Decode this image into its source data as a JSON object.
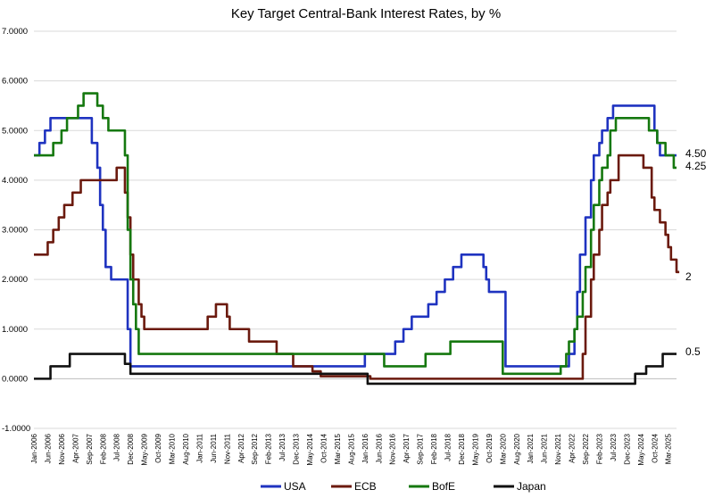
{
  "chart_data": {
    "type": "line",
    "title": "Key Target Central-Bank Interest Rates, by %",
    "xlabel": "",
    "ylabel": "",
    "ylim": [
      -1,
      7
    ],
    "x_start": "2006-01",
    "x_end": "2025-06",
    "y_ticks": [
      "-1.0000",
      "0.0000",
      "1.0000",
      "2.0000",
      "3.0000",
      "4.0000",
      "5.0000",
      "6.0000",
      "7.0000"
    ],
    "x_ticks": [
      "Jan-2006",
      "Jun-2006",
      "Nov-2006",
      "Apr-2007",
      "Sep-2007",
      "Feb-2008",
      "Jul-2008",
      "Dec-2008",
      "May-2009",
      "Oct-2009",
      "Mar-2010",
      "Aug-2010",
      "Jan-2011",
      "Jun-2011",
      "Nov-2011",
      "Apr-2012",
      "Sep-2012",
      "Feb-2013",
      "Jul-2013",
      "Dec-2013",
      "May-2014",
      "Oct-2014",
      "Mar-2015",
      "Aug-2015",
      "Jan-2016",
      "Jun-2016",
      "Nov-2016",
      "Apr-2017",
      "Sep-2017",
      "Feb-2018",
      "Jul-2018",
      "Dec-2018",
      "May-2019",
      "Oct-2019",
      "Mar-2020",
      "Aug-2020",
      "Jan-2021",
      "Jun-2021",
      "Nov-2021",
      "Apr-2022",
      "Sep-2022",
      "Feb-2023",
      "Jul-2023",
      "Dec-2023",
      "May-2024",
      "Oct-2024",
      "Mar-2025"
    ],
    "grid": "horizontal",
    "legend_position": "bottom",
    "series": [
      {
        "name": "USA",
        "color": "#1f33c0",
        "end_label": "4.50",
        "points": [
          [
            "2006-01",
            4.5
          ],
          [
            "2006-02",
            4.5
          ],
          [
            "2006-03",
            4.75
          ],
          [
            "2006-05",
            5.0
          ],
          [
            "2006-07",
            5.25
          ],
          [
            "2007-09",
            5.25
          ],
          [
            "2007-10",
            4.75
          ],
          [
            "2007-12",
            4.25
          ],
          [
            "2008-01",
            3.5
          ],
          [
            "2008-02",
            3.0
          ],
          [
            "2008-03",
            2.25
          ],
          [
            "2008-05",
            2.0
          ],
          [
            "2008-10",
            2.0
          ],
          [
            "2008-11",
            1.0
          ],
          [
            "2008-12",
            0.25
          ],
          [
            "2015-12",
            0.25
          ],
          [
            "2016-01",
            0.5
          ],
          [
            "2016-12",
            0.75
          ],
          [
            "2017-03",
            1.0
          ],
          [
            "2017-06",
            1.25
          ],
          [
            "2017-12",
            1.5
          ],
          [
            "2018-03",
            1.75
          ],
          [
            "2018-06",
            2.0
          ],
          [
            "2018-09",
            2.25
          ],
          [
            "2018-12",
            2.5
          ],
          [
            "2019-07",
            2.5
          ],
          [
            "2019-08",
            2.25
          ],
          [
            "2019-09",
            2.0
          ],
          [
            "2019-10",
            1.75
          ],
          [
            "2020-03",
            1.75
          ],
          [
            "2020-04",
            0.25
          ],
          [
            "2022-02",
            0.25
          ],
          [
            "2022-03",
            0.5
          ],
          [
            "2022-05",
            1.0
          ],
          [
            "2022-06",
            1.75
          ],
          [
            "2022-07",
            2.5
          ],
          [
            "2022-09",
            3.25
          ],
          [
            "2022-11",
            4.0
          ],
          [
            "2022-12",
            4.5
          ],
          [
            "2023-02",
            4.75
          ],
          [
            "2023-03",
            5.0
          ],
          [
            "2023-05",
            5.25
          ],
          [
            "2023-07",
            5.5
          ],
          [
            "2024-09",
            5.5
          ],
          [
            "2024-10",
            5.0
          ],
          [
            "2024-11",
            4.75
          ],
          [
            "2024-12",
            4.5
          ],
          [
            "2025-06",
            4.5
          ]
        ]
      },
      {
        "name": "ECB",
        "color": "#6b1a0e",
        "end_label": "2",
        "points": [
          [
            "2006-01",
            2.5
          ],
          [
            "2006-03",
            2.5
          ],
          [
            "2006-06",
            2.75
          ],
          [
            "2006-08",
            3.0
          ],
          [
            "2006-10",
            3.25
          ],
          [
            "2006-12",
            3.5
          ],
          [
            "2007-03",
            3.75
          ],
          [
            "2007-06",
            4.0
          ],
          [
            "2008-07",
            4.25
          ],
          [
            "2008-10",
            3.75
          ],
          [
            "2008-11",
            3.25
          ],
          [
            "2008-12",
            2.5
          ],
          [
            "2009-01",
            2.0
          ],
          [
            "2009-03",
            1.5
          ],
          [
            "2009-04",
            1.25
          ],
          [
            "2009-05",
            1.0
          ],
          [
            "2011-04",
            1.25
          ],
          [
            "2011-07",
            1.5
          ],
          [
            "2011-11",
            1.25
          ],
          [
            "2011-12",
            1.0
          ],
          [
            "2012-07",
            0.75
          ],
          [
            "2013-05",
            0.5
          ],
          [
            "2013-11",
            0.25
          ],
          [
            "2014-06",
            0.15
          ],
          [
            "2014-09",
            0.05
          ],
          [
            "2016-03",
            0.0
          ],
          [
            "2022-07",
            0.0
          ],
          [
            "2022-08",
            0.5
          ],
          [
            "2022-09",
            1.25
          ],
          [
            "2022-11",
            2.0
          ],
          [
            "2022-12",
            2.5
          ],
          [
            "2023-02",
            3.0
          ],
          [
            "2023-03",
            3.5
          ],
          [
            "2023-05",
            3.75
          ],
          [
            "2023-06",
            4.0
          ],
          [
            "2023-09",
            4.5
          ],
          [
            "2024-06",
            4.25
          ],
          [
            "2024-09",
            3.65
          ],
          [
            "2024-10",
            3.4
          ],
          [
            "2024-12",
            3.15
          ],
          [
            "2025-02",
            2.9
          ],
          [
            "2025-03",
            2.65
          ],
          [
            "2025-04",
            2.4
          ],
          [
            "2025-06",
            2.15
          ],
          [
            "2025-07",
            2.15
          ]
        ]
      },
      {
        "name": "BofE",
        "color": "#15780f",
        "end_label": "4.25",
        "points": [
          [
            "2006-01",
            4.5
          ],
          [
            "2006-08",
            4.75
          ],
          [
            "2006-11",
            5.0
          ],
          [
            "2007-01",
            5.25
          ],
          [
            "2007-05",
            5.5
          ],
          [
            "2007-07",
            5.75
          ],
          [
            "2007-12",
            5.5
          ],
          [
            "2008-02",
            5.25
          ],
          [
            "2008-04",
            5.0
          ],
          [
            "2008-10",
            4.5
          ],
          [
            "2008-11",
            3.0
          ],
          [
            "2008-12",
            2.0
          ],
          [
            "2009-01",
            1.5
          ],
          [
            "2009-02",
            1.0
          ],
          [
            "2009-03",
            0.5
          ],
          [
            "2016-08",
            0.25
          ],
          [
            "2017-11",
            0.5
          ],
          [
            "2018-08",
            0.75
          ],
          [
            "2020-03",
            0.1
          ],
          [
            "2021-12",
            0.25
          ],
          [
            "2022-02",
            0.5
          ],
          [
            "2022-03",
            0.75
          ],
          [
            "2022-05",
            1.0
          ],
          [
            "2022-06",
            1.25
          ],
          [
            "2022-08",
            1.75
          ],
          [
            "2022-09",
            2.25
          ],
          [
            "2022-11",
            3.0
          ],
          [
            "2022-12",
            3.5
          ],
          [
            "2023-02",
            4.0
          ],
          [
            "2023-03",
            4.25
          ],
          [
            "2023-05",
            4.5
          ],
          [
            "2023-06",
            5.0
          ],
          [
            "2023-08",
            5.25
          ],
          [
            "2024-08",
            5.0
          ],
          [
            "2024-11",
            4.75
          ],
          [
            "2025-02",
            4.5
          ],
          [
            "2025-05",
            4.25
          ],
          [
            "2025-06",
            4.25
          ]
        ]
      },
      {
        "name": "Japan",
        "color": "#111111",
        "end_label": "0.5",
        "points": [
          [
            "2006-01",
            0.0
          ],
          [
            "2006-07",
            0.25
          ],
          [
            "2007-02",
            0.5
          ],
          [
            "2008-10",
            0.3
          ],
          [
            "2008-12",
            0.1
          ],
          [
            "2016-02",
            -0.1
          ],
          [
            "2024-03",
            0.1
          ],
          [
            "2024-07",
            0.25
          ],
          [
            "2025-01",
            0.5
          ],
          [
            "2025-06",
            0.5
          ]
        ]
      }
    ]
  }
}
